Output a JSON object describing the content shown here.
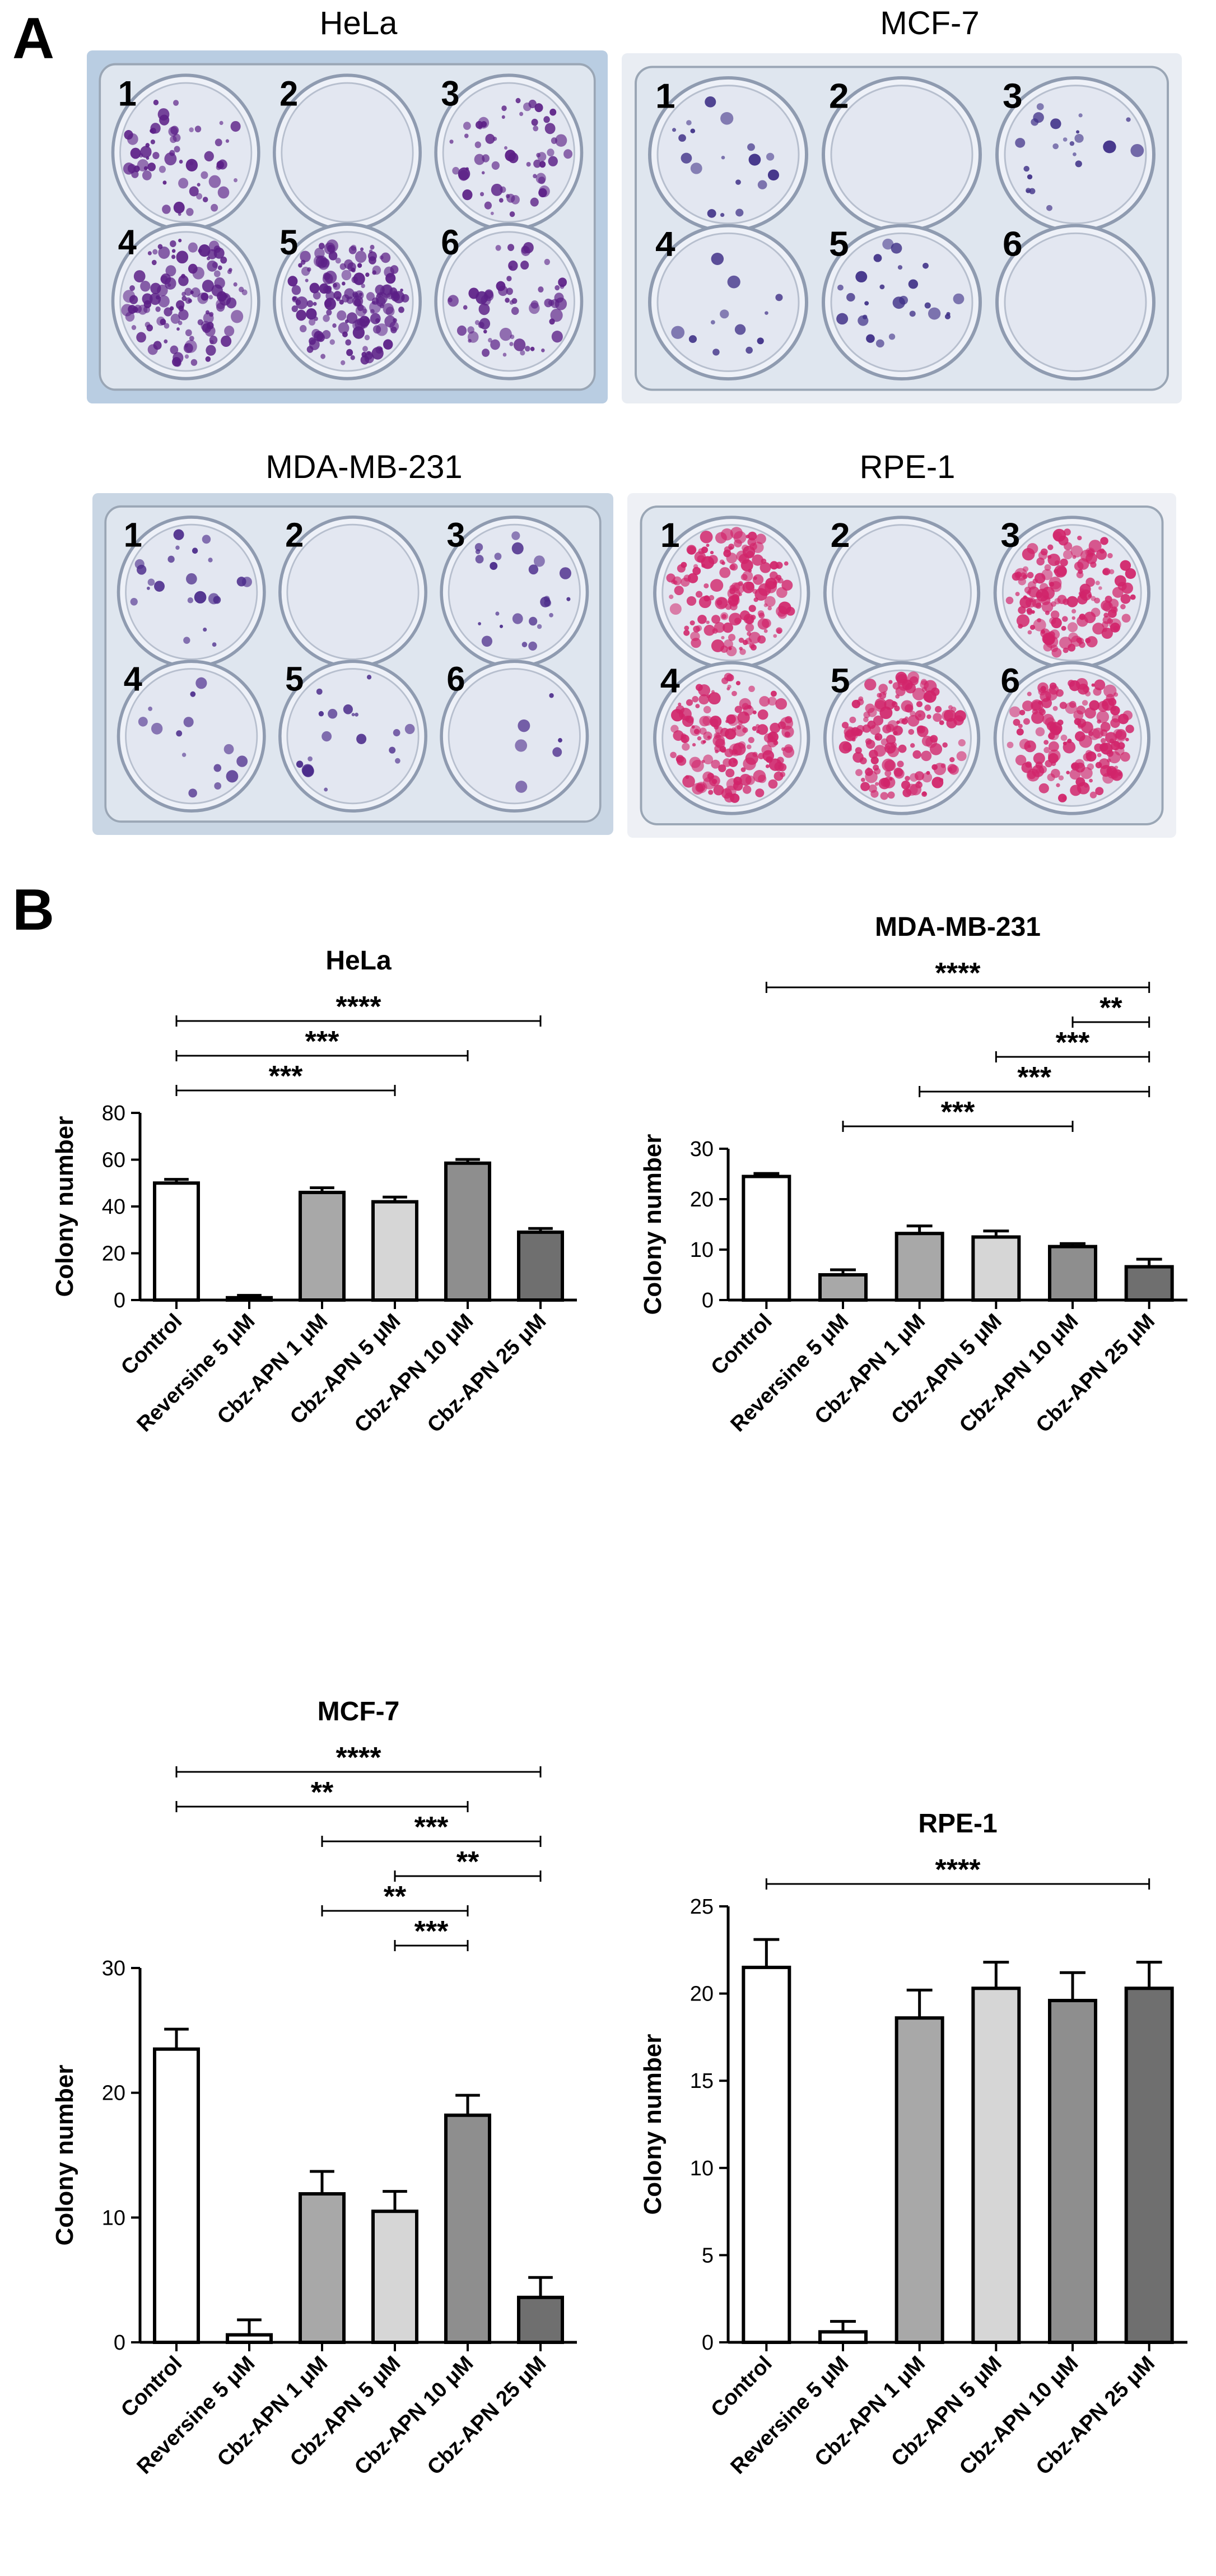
{
  "panel_a": {
    "letter": "A",
    "plates": [
      {
        "title": "HeLa",
        "well_labels": [
          "1",
          "2",
          "3",
          "4",
          "5",
          "6"
        ],
        "background": "#b9cde2",
        "stain": "#5b1f86",
        "density": [
          60,
          0,
          60,
          120,
          160,
          60
        ]
      },
      {
        "title": "MCF-7",
        "well_labels": [
          "1",
          "2",
          "3",
          "4",
          "5",
          "6"
        ],
        "background": "#e9edf3",
        "stain": "#3e2f86",
        "density": [
          18,
          0,
          22,
          12,
          25,
          0
        ]
      },
      {
        "title": "MDA-MB-231",
        "well_labels": [
          "1",
          "2",
          "3",
          "4",
          "5",
          "6"
        ],
        "background": "#c9d6e4",
        "stain": "#4a2a8a",
        "density": [
          22,
          0,
          24,
          14,
          18,
          6
        ]
      },
      {
        "title": "RPE-1",
        "well_labels": [
          "1",
          "2",
          "3",
          "4",
          "5",
          "6"
        ],
        "background": "#eef0f5",
        "stain": "#d1246a",
        "density": [
          160,
          0,
          160,
          160,
          160,
          160
        ]
      }
    ]
  },
  "panel_b": {
    "letter": "B"
  },
  "chart_data": [
    {
      "type": "bar",
      "title": "HeLa",
      "ylabel": "Colony number",
      "ylim": [
        0,
        80
      ],
      "yticks": [
        "0",
        "20",
        "40",
        "60",
        "80"
      ],
      "ytick_values": [
        0,
        20,
        40,
        60,
        80
      ],
      "categories": [
        "Control",
        "Reversine 5 μM",
        "Cbz-APN 1 μM",
        "Cbz-APN 5 μM",
        "Cbz-APN 10 μM",
        "Cbz-APN 25 μM"
      ],
      "values": [
        50,
        1,
        46,
        42,
        58.5,
        29
      ],
      "errors": [
        1.6,
        1.0,
        2.0,
        2.0,
        1.6,
        1.6
      ],
      "bar_colors": [
        "#ffffff",
        "#ffffff",
        "#a8a8a8",
        "#d6d6d6",
        "#8e8e8e",
        "#6f6f6f"
      ],
      "comparisons": [
        {
          "from": 0,
          "to": 3,
          "label": "***"
        },
        {
          "from": 0,
          "to": 4,
          "label": "***"
        },
        {
          "from": 0,
          "to": 5,
          "label": "****"
        }
      ]
    },
    {
      "type": "bar",
      "title": "MDA-MB-231",
      "ylabel": "Colony number",
      "ylim": [
        0,
        30
      ],
      "yticks": [
        "0",
        "10",
        "20",
        "30"
      ],
      "ytick_values": [
        0,
        10,
        20,
        30
      ],
      "categories": [
        "Control",
        "Reversine 5 μM",
        "Cbz-APN 1 μM",
        "Cbz-APN 5 μM",
        "Cbz-APN 10 μM",
        "Cbz-APN 25 μM"
      ],
      "values": [
        24.5,
        5,
        13.2,
        12.5,
        10.6,
        6.6
      ],
      "errors": [
        0.6,
        1.0,
        1.5,
        1.2,
        0.6,
        1.5
      ],
      "bar_colors": [
        "#ffffff",
        "#a8a8a8",
        "#a8a8a8",
        "#d6d6d6",
        "#8e8e8e",
        "#6f6f6f"
      ],
      "comparisons": [
        {
          "from": 1,
          "to": 4,
          "label": "***"
        },
        {
          "from": 2,
          "to": 5,
          "label": "***"
        },
        {
          "from": 3,
          "to": 5,
          "label": "***"
        },
        {
          "from": 4,
          "to": 5,
          "label": "**"
        },
        {
          "from": 0,
          "to": 5,
          "label": "****"
        }
      ]
    },
    {
      "type": "bar",
      "title": "MCF-7",
      "ylabel": "Colony number",
      "ylim": [
        0,
        30
      ],
      "yticks": [
        "0",
        "10",
        "20",
        "30"
      ],
      "ytick_values": [
        0,
        10,
        20,
        30
      ],
      "categories": [
        "Control",
        "Reversine 5 μM",
        "Cbz-APN 1 μM",
        "Cbz-APN 5 μM",
        "Cbz-APN 10 μM",
        "Cbz-APN 25 μM"
      ],
      "values": [
        23.5,
        0.6,
        11.9,
        10.5,
        18.2,
        3.6
      ],
      "errors": [
        1.6,
        1.2,
        1.8,
        1.6,
        1.6,
        1.6
      ],
      "bar_colors": [
        "#ffffff",
        "#ffffff",
        "#a8a8a8",
        "#d6d6d6",
        "#8e8e8e",
        "#6f6f6f"
      ],
      "comparisons": [
        {
          "from": 3,
          "to": 4,
          "label": "***"
        },
        {
          "from": 2,
          "to": 4,
          "label": "**"
        },
        {
          "from": 3,
          "to": 5,
          "label": "**"
        },
        {
          "from": 2,
          "to": 5,
          "label": "***"
        },
        {
          "from": 0,
          "to": 4,
          "label": "**"
        },
        {
          "from": 0,
          "to": 5,
          "label": "****"
        }
      ]
    },
    {
      "type": "bar",
      "title": "RPE-1",
      "ylabel": "Colony number",
      "ylim": [
        0,
        25
      ],
      "yticks": [
        "0",
        "5",
        "10",
        "15",
        "20",
        "25"
      ],
      "ytick_values": [
        0,
        5,
        10,
        15,
        20,
        25
      ],
      "categories": [
        "Control",
        "Reversine 5 μM",
        "Cbz-APN 1 μM",
        "Cbz-APN 5 μM",
        "Cbz-APN 10 μM",
        "Cbz-APN 25 μM"
      ],
      "values": [
        21.5,
        0.6,
        18.6,
        20.3,
        19.6,
        20.3
      ],
      "errors": [
        1.6,
        0.6,
        1.6,
        1.5,
        1.6,
        1.5
      ],
      "bar_colors": [
        "#ffffff",
        "#ffffff",
        "#a8a8a8",
        "#d6d6d6",
        "#8e8e8e",
        "#6f6f6f"
      ],
      "comparisons": [
        {
          "from": 0,
          "to": 5,
          "label": "****"
        }
      ]
    }
  ]
}
